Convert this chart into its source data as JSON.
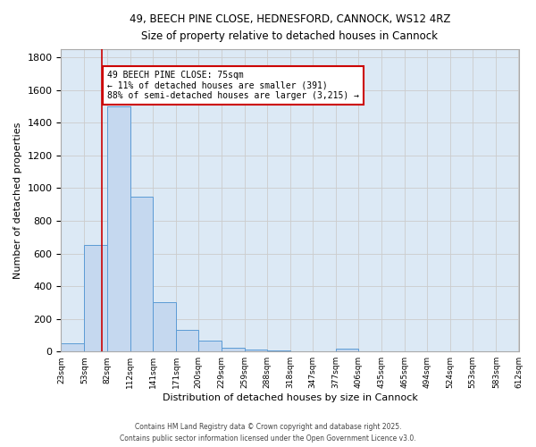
{
  "title_line1": "49, BEECH PINE CLOSE, HEDNESFORD, CANNOCK, WS12 4RZ",
  "title_line2": "Size of property relative to detached houses in Cannock",
  "xlabel": "Distribution of detached houses by size in Cannock",
  "ylabel": "Number of detached properties",
  "bar_edges": [
    23,
    53,
    82,
    112,
    141,
    171,
    200,
    229,
    259,
    288,
    318,
    347,
    377,
    406,
    435,
    465,
    494,
    524,
    553,
    583,
    612
  ],
  "bar_heights": [
    50,
    650,
    1500,
    950,
    300,
    135,
    65,
    25,
    10,
    5,
    2,
    1,
    15,
    0,
    0,
    0,
    0,
    0,
    0,
    0
  ],
  "bar_color": "#c5d8ef",
  "bar_edge_color": "#5b9bd5",
  "reference_line_x": 75,
  "annotation_title": "49 BEECH PINE CLOSE: 75sqm",
  "annotation_line2": "← 11% of detached houses are smaller (391)",
  "annotation_line3": "88% of semi-detached houses are larger (3,215) →",
  "annotation_box_color": "#ffffff",
  "annotation_box_edge": "#cc0000",
  "reference_line_color": "#cc0000",
  "ylim": [
    0,
    1850
  ],
  "yticks": [
    0,
    200,
    400,
    600,
    800,
    1000,
    1200,
    1400,
    1600,
    1800
  ],
  "grid_color": "#cccccc",
  "background_color": "#dce9f5",
  "footer_line1": "Contains HM Land Registry data © Crown copyright and database right 2025.",
  "footer_line2": "Contains public sector information licensed under the Open Government Licence v3.0."
}
